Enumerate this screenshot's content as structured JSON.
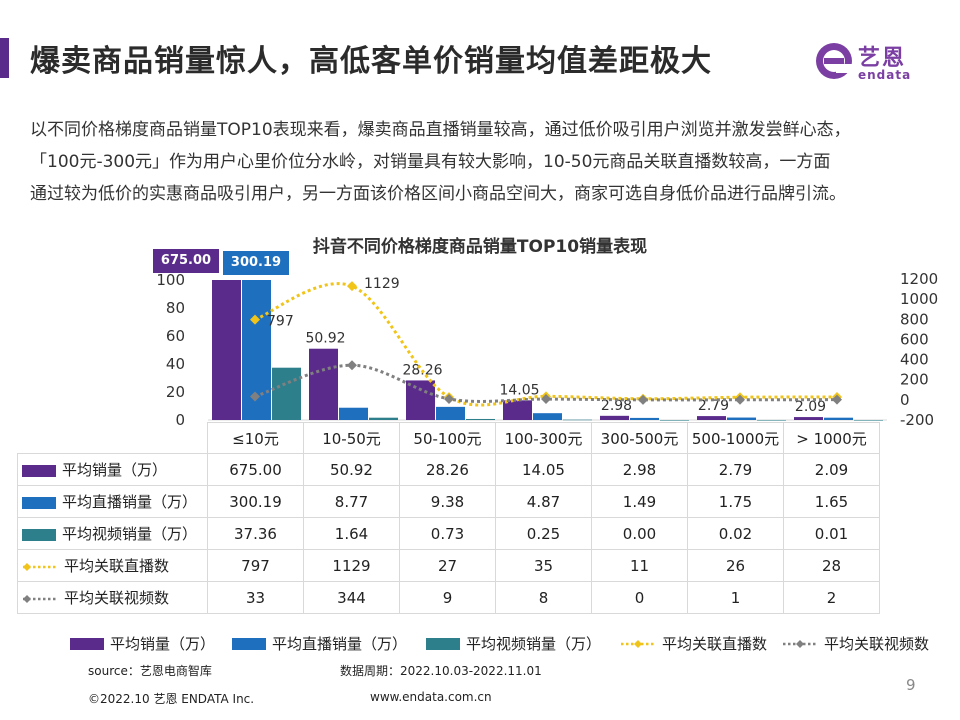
{
  "header": {
    "title": "爆卖商品销量惊人，高低客单价销量均值差距极大",
    "logo_text": "艺恩",
    "logo_sub": "endata"
  },
  "intro": [
    "以不同价格梯度商品销量TOP10表现来看，爆卖商品直播销量较高，通过低价吸引用户浏览并激发尝鲜心态，",
    "「100元-300元」作为用户心里价位分水岭，对销量具有较大影响，10-50元商品关联直播数较高，一方面",
    "通过较为低价的实惠商品吸引用户，另一方面该价格区间小商品空间大，商家可选自身低价品进行品牌引流。"
  ],
  "chart_data": {
    "type": "bar",
    "title": "抖音不同价格梯度商品销量TOP10销量表现",
    "categories": [
      "≤10元",
      "10-50元",
      "50-100元",
      "100-300元",
      "300-500元",
      "500-1000元",
      "> 1000元"
    ],
    "bar_series": [
      {
        "name": "平均销量（万）",
        "values": [
          675.0,
          50.92,
          28.26,
          14.05,
          2.98,
          2.79,
          2.09
        ],
        "color": "#5b2b8c",
        "display": [
          "675.00",
          "50.92",
          "28.26",
          "14.05",
          "2.98",
          "2.79",
          "2.09"
        ]
      },
      {
        "name": "平均直播销量（万）",
        "values": [
          300.19,
          8.77,
          9.38,
          4.87,
          1.49,
          1.75,
          1.65
        ],
        "color": "#1f6fbf",
        "display": [
          "300.19",
          "8.77",
          "9.38",
          "4.87",
          "1.49",
          "1.75",
          "1.65"
        ]
      },
      {
        "name": "平均视频销量（万）",
        "values": [
          37.36,
          1.64,
          0.73,
          0.25,
          0.0,
          0.02,
          0.01
        ],
        "color": "#2e7f8c",
        "display": [
          "37.36",
          "1.64",
          "0.73",
          "0.25",
          "0.00",
          "0.02",
          "0.01"
        ]
      }
    ],
    "line_series": [
      {
        "name": "平均关联直播数",
        "values": [
          797,
          1129,
          27,
          35,
          11,
          26,
          28
        ],
        "color": "#f0c419",
        "marker": "diamond",
        "display": [
          "797",
          "1129",
          "27",
          "35",
          "11",
          "26",
          "28"
        ]
      },
      {
        "name": "平均关联视频数",
        "values": [
          33,
          344,
          9,
          8,
          0,
          1,
          2
        ],
        "color": "#808080",
        "marker": "diamond",
        "display": [
          "33",
          "344",
          "9",
          "8",
          "0",
          "1",
          "2"
        ]
      }
    ],
    "y_left": {
      "ticks": [
        0,
        20,
        40,
        60,
        80,
        100
      ],
      "range": [
        0,
        100
      ]
    },
    "y_right": {
      "ticks": [
        -200,
        0,
        200,
        400,
        600,
        800,
        1000,
        1200
      ],
      "range": [
        -200,
        1200
      ]
    },
    "capped_bar_labels": [
      "675.00",
      "300.19"
    ],
    "bar_value_labels": [
      "50.92",
      "28.26",
      "14.05",
      "2.98",
      "2.79",
      "2.09"
    ],
    "line_point_labels": [
      "797",
      "1129"
    ]
  },
  "footer": {
    "source": "source：艺恩电商智库",
    "period": "数据周期：2022.10.03-2022.11.01",
    "copyright": "©2022.10 艺恩 ENDATA Inc.",
    "url": "www.endata.com.cn",
    "page": "9"
  }
}
